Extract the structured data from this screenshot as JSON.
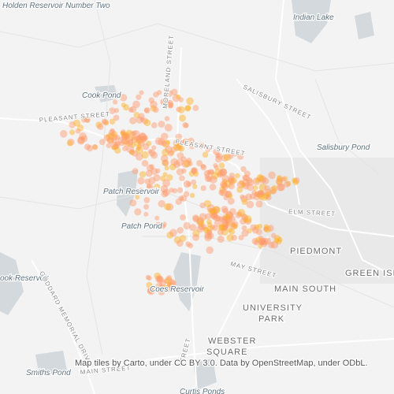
{
  "water_labels": [
    "Holden Reservoir Number Two",
    "Indian Lake",
    "Cook Pond",
    "Salisbury Pond",
    "Patch Reservoir",
    "Patch Pond",
    "Coes Reservoir",
    "ook Reservoir",
    "Smiths Pond",
    "Curtis Ponds"
  ],
  "street_labels": [
    "PLEASANT STREET",
    "MORELAND STREET",
    "PLEASANT STREET",
    "SALISBURY STREET",
    "ELM STREET",
    "MAY STREET",
    "GODDARD MEMORIAL DRIVE",
    "MAIN STREET",
    "STREET"
  ],
  "place_labels": [
    "PIEDMONT",
    "GREEN ISL",
    "MAIN SOUTH",
    "UNIVERSITY",
    "PARK",
    "WEBSTER",
    "SQUARE"
  ],
  "attribution": "Map tiles by Carto, under CC BY 3.0. Data by OpenStreetMap, under ODbL."
}
